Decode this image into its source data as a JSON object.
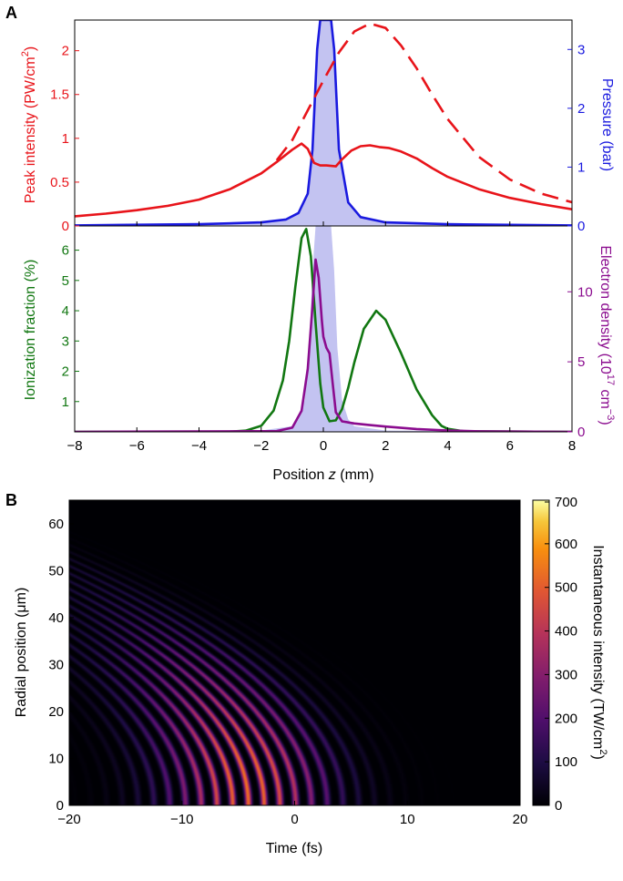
{
  "panel_a": {
    "label": "A",
    "top_left_axis_label": "Peak intensity (PW/cm",
    "top_left_axis_sup": "2",
    "top_left_axis_close": ")",
    "top_right_axis_label": "Pressure (bar)",
    "bottom_left_axis_label": "Ionization fraction (%)",
    "bottom_right_axis_label": "Electron density (10",
    "bottom_right_axis_sup": "17",
    "bottom_right_axis_unit": " cm",
    "bottom_right_axis_unit_sup": "−3",
    "bottom_right_axis_close": ")",
    "x_label": "Position ",
    "x_label_var": "z",
    "x_label_unit": " (mm)"
  },
  "panel_b": {
    "label": "B",
    "x_label": "Time (fs)",
    "y_label": "Radial position (μm)",
    "colorbar_label": "Instantaneous intensity (TW/cm",
    "colorbar_sup": "2",
    "colorbar_close": ")"
  },
  "colors": {
    "peak_intensity": "#e8141a",
    "pressure": "#1a1adf",
    "pressure_fill": "#c3c3f1",
    "ionization": "#117711",
    "electron_density": "#8b0c8f"
  },
  "chart_data": [
    {
      "type": "line",
      "panel": "A-top",
      "xlim": [
        -8,
        8
      ],
      "ylim_left": [
        0,
        2.35
      ],
      "ylim_right": [
        0,
        3.5
      ],
      "x_ticks": [
        "−8",
        "−6",
        "−4",
        "−2",
        "0",
        "2",
        "4",
        "6",
        "8"
      ],
      "y_ticks_left": [
        "0",
        "0.5",
        "1",
        "1.5",
        "2"
      ],
      "y_ticks_right": [
        "0",
        "1",
        "2",
        "3"
      ],
      "series": [
        {
          "axis": "left",
          "style": "solid",
          "x": [
            -8,
            -7,
            -6,
            -5,
            -4,
            -3,
            -2,
            -1.5,
            -1,
            -0.7,
            -0.5,
            -0.3,
            -0.1,
            0.1,
            0.4,
            0.6,
            0.9,
            1.2,
            1.5,
            1.8,
            2.1,
            2.5,
            3,
            3.5,
            4,
            5,
            6,
            7,
            8
          ],
          "y": [
            0.11,
            0.14,
            0.18,
            0.23,
            0.3,
            0.42,
            0.6,
            0.73,
            0.87,
            0.94,
            0.88,
            0.72,
            0.69,
            0.69,
            0.68,
            0.76,
            0.86,
            0.91,
            0.92,
            0.9,
            0.89,
            0.85,
            0.77,
            0.66,
            0.56,
            0.42,
            0.32,
            0.25,
            0.19
          ]
        },
        {
          "axis": "left",
          "style": "dashed",
          "x": [
            -1.5,
            -1,
            -0.5,
            0,
            0.5,
            1,
            1.5,
            2,
            2.5,
            3,
            3.5,
            4,
            5,
            6,
            7,
            8
          ],
          "y": [
            0.75,
            0.98,
            1.32,
            1.66,
            1.98,
            2.22,
            2.31,
            2.26,
            2.06,
            1.8,
            1.5,
            1.22,
            0.79,
            0.53,
            0.37,
            0.27
          ]
        },
        {
          "axis": "right",
          "style": "filled",
          "x": [
            -8,
            -4,
            -2,
            -1.2,
            -0.8,
            -0.5,
            -0.35,
            -0.2,
            -0.1,
            0.25,
            0.35,
            0.5,
            0.8,
            1.2,
            2,
            4,
            8
          ],
          "y": [
            0.01,
            0.03,
            0.06,
            0.11,
            0.22,
            0.55,
            1.3,
            3.0,
            3.5,
            3.5,
            3.0,
            1.3,
            0.4,
            0.15,
            0.06,
            0.03,
            0.01
          ]
        }
      ]
    },
    {
      "type": "line",
      "panel": "A-bottom",
      "xlim": [
        -8,
        8
      ],
      "ylim_left": [
        0,
        6.8
      ],
      "ylim_right": [
        0,
        14.7
      ],
      "x_ticks": [
        "−8",
        "−6",
        "−4",
        "−2",
        "0",
        "2",
        "4",
        "6",
        "8"
      ],
      "y_ticks_left": [
        "1",
        "2",
        "3",
        "4",
        "5",
        "6"
      ],
      "y_ticks_right": [
        "0",
        "5",
        "10"
      ],
      "series": [
        {
          "axis": "left",
          "style": "solid",
          "x": [
            -8,
            -3,
            -2.5,
            -2,
            -1.6,
            -1.3,
            -1.1,
            -0.9,
            -0.7,
            -0.55,
            -0.4,
            -0.25,
            -0.1,
            0,
            0.2,
            0.4,
            0.6,
            0.8,
            1,
            1.3,
            1.7,
            2,
            2.5,
            3,
            3.5,
            3.8,
            4,
            4.5,
            8
          ],
          "y": [
            0,
            0.01,
            0.04,
            0.2,
            0.7,
            1.7,
            3.0,
            4.8,
            6.4,
            6.7,
            5.8,
            3.6,
            1.6,
            0.8,
            0.35,
            0.38,
            0.75,
            1.45,
            2.3,
            3.4,
            4.0,
            3.7,
            2.6,
            1.4,
            0.55,
            0.2,
            0.1,
            0.02,
            0
          ]
        },
        {
          "axis": "right",
          "style": "solid",
          "x": [
            -8,
            -1.5,
            -1,
            -0.7,
            -0.5,
            -0.35,
            -0.25,
            -0.15,
            -0.05,
            0,
            0.1,
            0.2,
            0.3,
            0.4,
            0.6,
            1,
            1.5,
            2,
            3,
            4,
            5,
            8
          ],
          "y": [
            0,
            0.05,
            0.3,
            1.5,
            4.5,
            9.0,
            12.3,
            11.0,
            8.0,
            6.8,
            6.0,
            5.6,
            3.5,
            1.4,
            0.75,
            0.6,
            0.48,
            0.38,
            0.2,
            0.1,
            0.04,
            0
          ]
        },
        {
          "axis": "right",
          "style": "filled",
          "x": [
            -8,
            -2,
            -1,
            -0.8,
            -0.6,
            -0.45,
            -0.35,
            -0.25,
            0.25,
            0.35,
            0.45,
            0.6,
            0.8,
            1,
            2,
            8
          ],
          "y": [
            0,
            0.1,
            0.4,
            0.9,
            2.3,
            6.0,
            11.5,
            14.7,
            14.7,
            11.5,
            6.0,
            2.3,
            0.9,
            0.4,
            0.1,
            0
          ]
        }
      ]
    },
    {
      "type": "heatmap",
      "panel": "B",
      "xlim": [
        -20,
        20
      ],
      "ylim": [
        0,
        65
      ],
      "x_ticks": [
        "−20",
        "−10",
        "0",
        "10",
        "20"
      ],
      "y_ticks": [
        "0",
        "10",
        "20",
        "30",
        "40",
        "50",
        "60"
      ],
      "colorbar_range": [
        0,
        700
      ],
      "colorbar_ticks": [
        "0",
        "100",
        "200",
        "300",
        "400",
        "500",
        "600",
        "700"
      ],
      "colormap": "inferno",
      "peak_value": 700,
      "peak_location": [
        -5.5,
        0
      ],
      "fringe_period_fs": 2.8,
      "envelope_center_fs": -4,
      "envelope_duration_fs": 16,
      "beam_radius_um": 30,
      "wavefront_curvature": 0.004
    }
  ]
}
